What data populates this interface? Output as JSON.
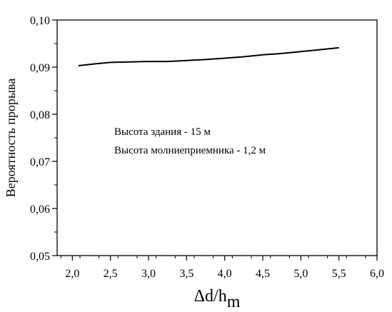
{
  "chart_data": {
    "type": "line",
    "title": "",
    "xlabel": "Δd/h",
    "xlabel_subscript": "m",
    "ylabel": "Вероятность прорыва",
    "xlim": [
      1.8,
      6.0
    ],
    "ylim": [
      0.05,
      0.1
    ],
    "xticks": [
      "2,0",
      "2,5",
      "3,0",
      "3,5",
      "4,0",
      "4,5",
      "5,0",
      "5,5",
      "6,0"
    ],
    "xtick_values": [
      2.0,
      2.5,
      3.0,
      3.5,
      4.0,
      4.5,
      5.0,
      5.5,
      6.0
    ],
    "yticks": [
      "0,05",
      "0,06",
      "0,07",
      "0,08",
      "0,09",
      "0,10"
    ],
    "ytick_values": [
      0.05,
      0.06,
      0.07,
      0.08,
      0.09,
      0.1
    ],
    "grid": false,
    "annotations": [
      "Высота здания - 15 м",
      "Высота молниеприемника - 1,2 м"
    ],
    "series": [
      {
        "x": [
          2.08,
          2.3,
          2.5,
          2.75,
          3.0,
          3.25,
          3.5,
          3.75,
          4.0,
          4.25,
          4.5,
          4.75,
          5.0,
          5.25,
          5.5
        ],
        "y": [
          0.0903,
          0.0907,
          0.091,
          0.0911,
          0.0912,
          0.0912,
          0.0914,
          0.0916,
          0.0919,
          0.0922,
          0.0926,
          0.0929,
          0.0933,
          0.0937,
          0.0941
        ]
      }
    ]
  }
}
